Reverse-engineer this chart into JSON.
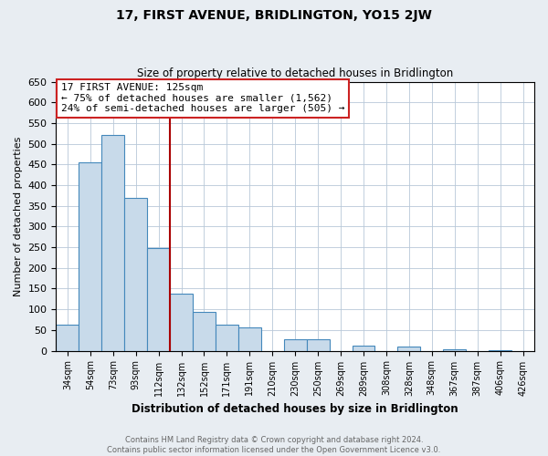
{
  "title": "17, FIRST AVENUE, BRIDLINGTON, YO15 2JW",
  "subtitle": "Size of property relative to detached houses in Bridlington",
  "xlabel": "Distribution of detached houses by size in Bridlington",
  "ylabel": "Number of detached properties",
  "bar_labels": [
    "34sqm",
    "54sqm",
    "73sqm",
    "93sqm",
    "112sqm",
    "132sqm",
    "152sqm",
    "171sqm",
    "191sqm",
    "210sqm",
    "230sqm",
    "250sqm",
    "269sqm",
    "289sqm",
    "308sqm",
    "328sqm",
    "348sqm",
    "367sqm",
    "387sqm",
    "406sqm",
    "426sqm"
  ],
  "bar_values": [
    62,
    455,
    522,
    370,
    248,
    138,
    93,
    62,
    57,
    0,
    28,
    28,
    0,
    12,
    0,
    10,
    0,
    3,
    0,
    2,
    0
  ],
  "bar_color": "#c8daea",
  "bar_edge_color": "#4488bb",
  "ylim": [
    0,
    650
  ],
  "yticks": [
    0,
    50,
    100,
    150,
    200,
    250,
    300,
    350,
    400,
    450,
    500,
    550,
    600,
    650
  ],
  "vline_x": 4.5,
  "vline_color": "#aa0000",
  "annotation_title": "17 FIRST AVENUE: 125sqm",
  "annotation_line1": "← 75% of detached houses are smaller (1,562)",
  "annotation_line2": "24% of semi-detached houses are larger (505) →",
  "footer_line1": "Contains HM Land Registry data © Crown copyright and database right 2024.",
  "footer_line2": "Contains public sector information licensed under the Open Government Licence v3.0.",
  "background_color": "#e8edf2",
  "plot_bg_color": "#ffffff",
  "grid_color": "#b8c8d8"
}
